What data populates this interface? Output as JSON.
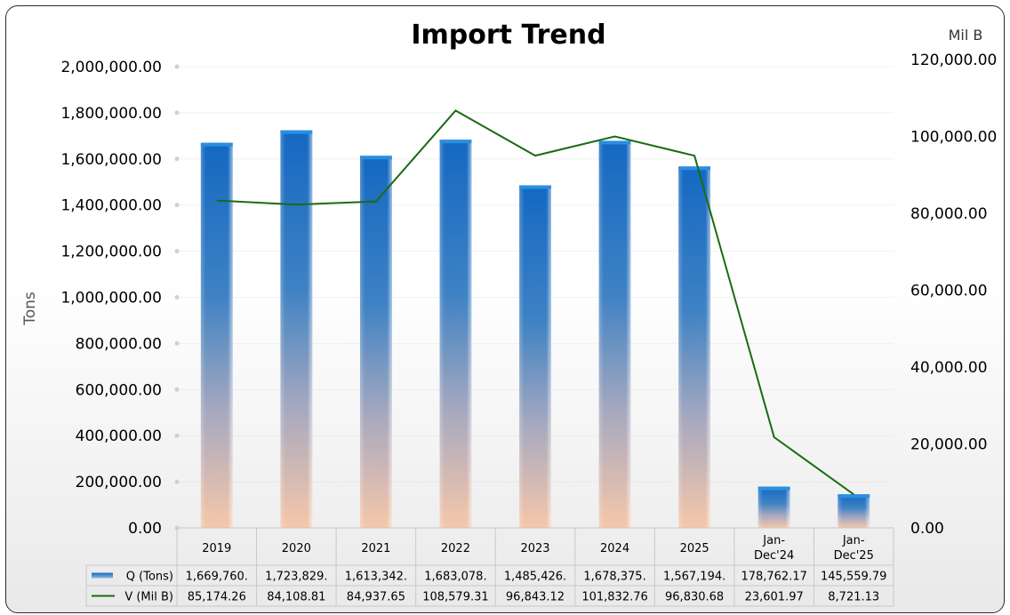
{
  "chart_data": {
    "type": "bar",
    "title": "Import Trend",
    "ylabel": "Tons",
    "y2label": "Mil B",
    "ylim": [
      0,
      2000000
    ],
    "y2lim": [
      0,
      120000
    ],
    "y_ticks": [
      "0.00",
      "200,000.00",
      "400,000.00",
      "600,000.00",
      "800,000.00",
      "1,000,000.00",
      "1,200,000.00",
      "1,400,000.00",
      "1,600,000.00",
      "1,800,000.00",
      "2,000,000.00"
    ],
    "y2_ticks": [
      "0.00",
      "20,000.00",
      "40,000.00",
      "60,000.00",
      "80,000.00",
      "100,000.00",
      "120,000.00"
    ],
    "categories": [
      [
        "2019"
      ],
      [
        "2020"
      ],
      [
        "2021"
      ],
      [
        "2022"
      ],
      [
        "2023"
      ],
      [
        "2024"
      ],
      [
        "2025"
      ],
      [
        "Jan-",
        "Dec'24"
      ],
      [
        "Jan-",
        "Dec'25"
      ]
    ],
    "series": [
      {
        "name": "Q (Tons)",
        "type": "bar",
        "axis": "left",
        "values": [
          1669760,
          1723829,
          1613342,
          1683078,
          1485426,
          1678375,
          1567194,
          178762.17,
          145559.79
        ],
        "table_labels": [
          "1,669,760.",
          "1,723,829.",
          "1,613,342.",
          "1,683,078.",
          "1,485,426.",
          "1,678,375.",
          "1,567,194.",
          "178,762.17",
          "145,559.79"
        ],
        "color": "#1f6fc5"
      },
      {
        "name": "V (Mil B)",
        "type": "line",
        "axis": "right",
        "values": [
          85174.26,
          84108.81,
          84937.65,
          108579.31,
          96843.12,
          101832.76,
          96830.68,
          23601.97,
          8721.13
        ],
        "table_labels": [
          "85,174.26",
          "84,108.81",
          "84,937.65",
          "108,579.31",
          "96,843.12",
          "101,832.76",
          "96,830.68",
          "23,601.97",
          "8,721.13"
        ],
        "color": "#1a6b12"
      }
    ],
    "grid": true,
    "legend": "data-table"
  }
}
